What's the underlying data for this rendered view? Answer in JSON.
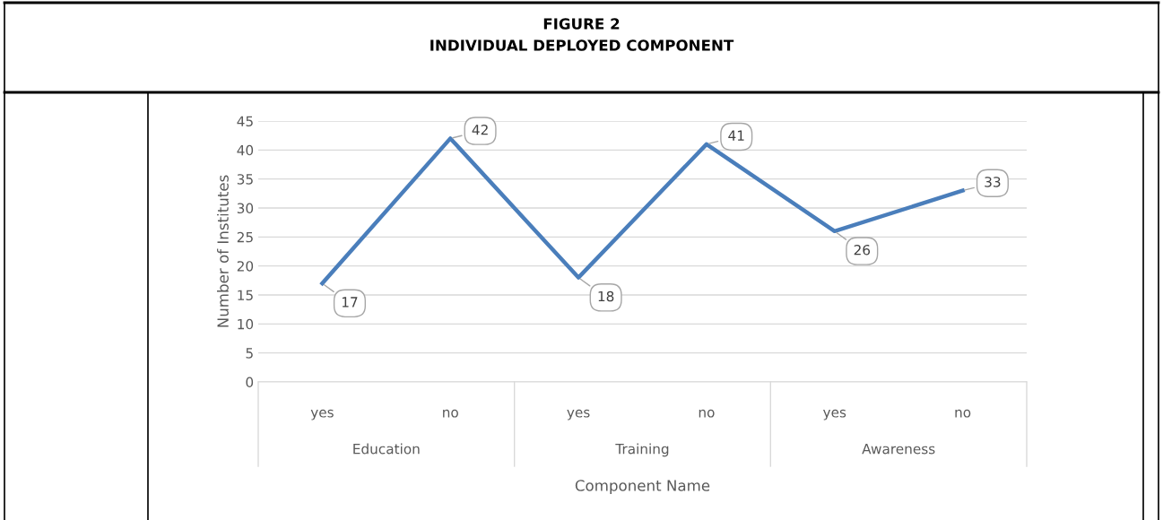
{
  "chart_data": {
    "type": "line",
    "title": "FIGURE 2",
    "subtitle": "INDIVIDUAL DEPLOYED COMPONENT",
    "categories": [
      "yes",
      "no",
      "yes",
      "no",
      "yes",
      "no"
    ],
    "annotations": [
      "Education",
      "Training",
      "Awareness"
    ],
    "series": [
      {
        "color": "#4a7ebb",
        "values": [
          17,
          42,
          18,
          41,
          26,
          33
        ]
      }
    ],
    "xlabel": "Component Name",
    "ylabel": "Number of Institutes",
    "ylim": [
      0,
      45
    ],
    "yticks": [
      0,
      5,
      10,
      15,
      20,
      25,
      30,
      35,
      40,
      45
    ],
    "grid": "y",
    "legend": false,
    "marker": "none",
    "line_style": "solid",
    "data_labels": true
  }
}
